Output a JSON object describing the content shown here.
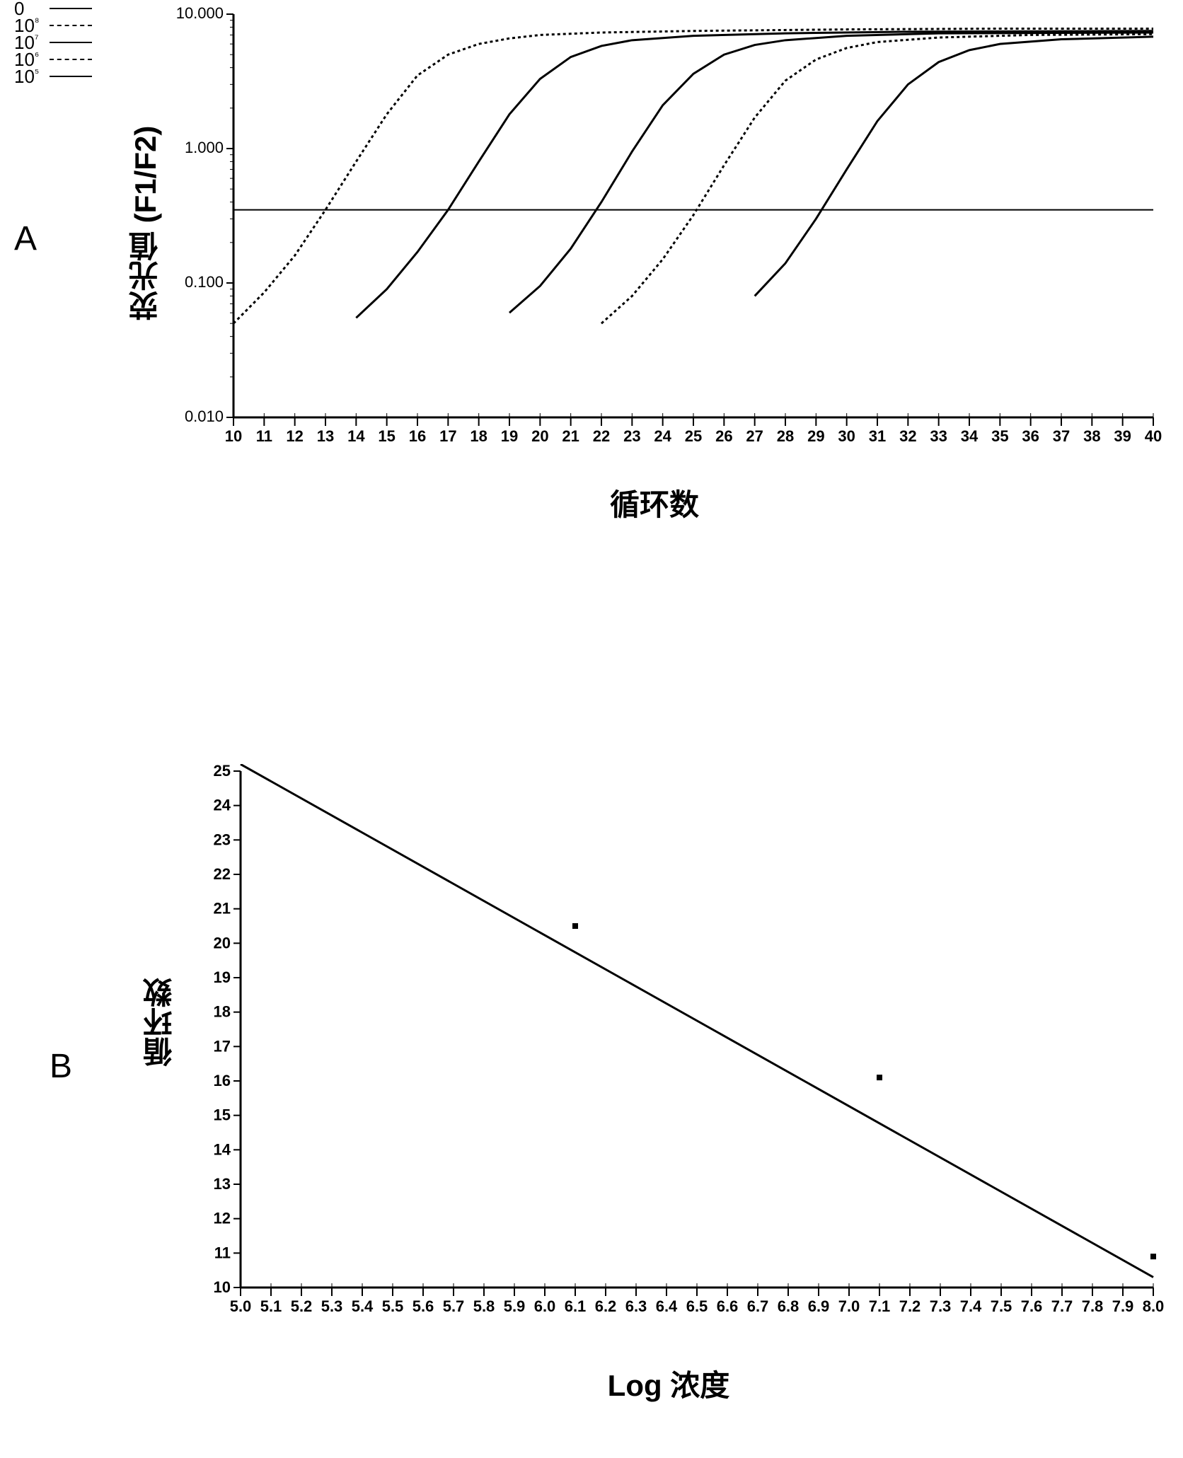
{
  "panelA": {
    "label": "A",
    "type": "line-log-y",
    "ylabel": "荧光值 (F1/F2)",
    "xlabel": "循环数",
    "xlim": [
      10,
      40
    ],
    "xtick_step": 1,
    "ylim": [
      0.01,
      10.0
    ],
    "yticks": [
      0.01,
      0.1,
      1.0,
      10.0
    ],
    "ytick_labels": [
      "0.010",
      "0.100",
      "1.000",
      "10.000"
    ],
    "threshold_y": 0.35,
    "threshold_color": "#000000",
    "legend": [
      {
        "label": "0",
        "style": "solid"
      },
      {
        "label": "10⁸",
        "style": "dash"
      },
      {
        "label": "10⁷",
        "style": "solid"
      },
      {
        "label": "10⁶",
        "style": "dash"
      },
      {
        "label": "10⁵",
        "style": "solid"
      }
    ],
    "series": [
      {
        "name": "10^8",
        "dash": "4 4",
        "color": "#000000",
        "line_width": 3,
        "points": [
          [
            10,
            0.05
          ],
          [
            11,
            0.085
          ],
          [
            12,
            0.16
          ],
          [
            13,
            0.35
          ],
          [
            14,
            0.8
          ],
          [
            15,
            1.8
          ],
          [
            16,
            3.5
          ],
          [
            17,
            5.0
          ],
          [
            18,
            6.0
          ],
          [
            19,
            6.6
          ],
          [
            20,
            7.0
          ],
          [
            22,
            7.3
          ],
          [
            25,
            7.5
          ],
          [
            30,
            7.7
          ],
          [
            35,
            7.8
          ],
          [
            40,
            7.8
          ]
        ]
      },
      {
        "name": "10^7",
        "dash": "",
        "color": "#000000",
        "line_width": 3,
        "points": [
          [
            14,
            0.055
          ],
          [
            15,
            0.09
          ],
          [
            16,
            0.17
          ],
          [
            17,
            0.35
          ],
          [
            18,
            0.8
          ],
          [
            19,
            1.8
          ],
          [
            20,
            3.3
          ],
          [
            21,
            4.8
          ],
          [
            22,
            5.8
          ],
          [
            23,
            6.4
          ],
          [
            25,
            6.9
          ],
          [
            28,
            7.2
          ],
          [
            32,
            7.4
          ],
          [
            40,
            7.5
          ]
        ]
      },
      {
        "name": "10^6",
        "dash": "",
        "color": "#000000",
        "line_width": 3,
        "points": [
          [
            19,
            0.06
          ],
          [
            20,
            0.095
          ],
          [
            21,
            0.18
          ],
          [
            22,
            0.4
          ],
          [
            23,
            0.95
          ],
          [
            24,
            2.1
          ],
          [
            25,
            3.6
          ],
          [
            26,
            5.0
          ],
          [
            27,
            5.9
          ],
          [
            28,
            6.4
          ],
          [
            30,
            6.9
          ],
          [
            33,
            7.2
          ],
          [
            40,
            7.3
          ]
        ]
      },
      {
        "name": "10^5a",
        "dash": "4 4",
        "color": "#000000",
        "line_width": 3,
        "points": [
          [
            22,
            0.05
          ],
          [
            23,
            0.08
          ],
          [
            24,
            0.15
          ],
          [
            25,
            0.32
          ],
          [
            26,
            0.75
          ],
          [
            27,
            1.7
          ],
          [
            28,
            3.2
          ],
          [
            29,
            4.6
          ],
          [
            30,
            5.6
          ],
          [
            31,
            6.2
          ],
          [
            33,
            6.7
          ],
          [
            36,
            7.0
          ],
          [
            40,
            7.1
          ]
        ]
      },
      {
        "name": "10^5b",
        "dash": "",
        "color": "#000000",
        "line_width": 3,
        "points": [
          [
            27,
            0.08
          ],
          [
            28,
            0.14
          ],
          [
            29,
            0.3
          ],
          [
            30,
            0.7
          ],
          [
            31,
            1.6
          ],
          [
            32,
            3.0
          ],
          [
            33,
            4.4
          ],
          [
            34,
            5.4
          ],
          [
            35,
            6.0
          ],
          [
            37,
            6.5
          ],
          [
            40,
            6.8
          ]
        ]
      }
    ],
    "axis_color": "#000000",
    "tick_fontsize": 22,
    "label_fontsize": 42
  },
  "panelB": {
    "label": "B",
    "type": "line",
    "ylabel": "循环数",
    "xlabel": "Log 浓度",
    "xlim": [
      5.0,
      8.0
    ],
    "xtick_step": 0.1,
    "ylim": [
      10,
      25
    ],
    "ytick_step": 1,
    "line": {
      "x1": 5.0,
      "y1": 25.2,
      "x2": 8.0,
      "y2": 10.3,
      "color": "#000000",
      "line_width": 3
    },
    "points": [
      {
        "x": 6.1,
        "y": 20.5
      },
      {
        "x": 7.1,
        "y": 16.1
      },
      {
        "x": 8.0,
        "y": 10.9
      }
    ],
    "marker_size": 8,
    "marker_color": "#000000",
    "axis_color": "#000000",
    "tick_fontsize": 22,
    "label_fontsize": 42
  }
}
